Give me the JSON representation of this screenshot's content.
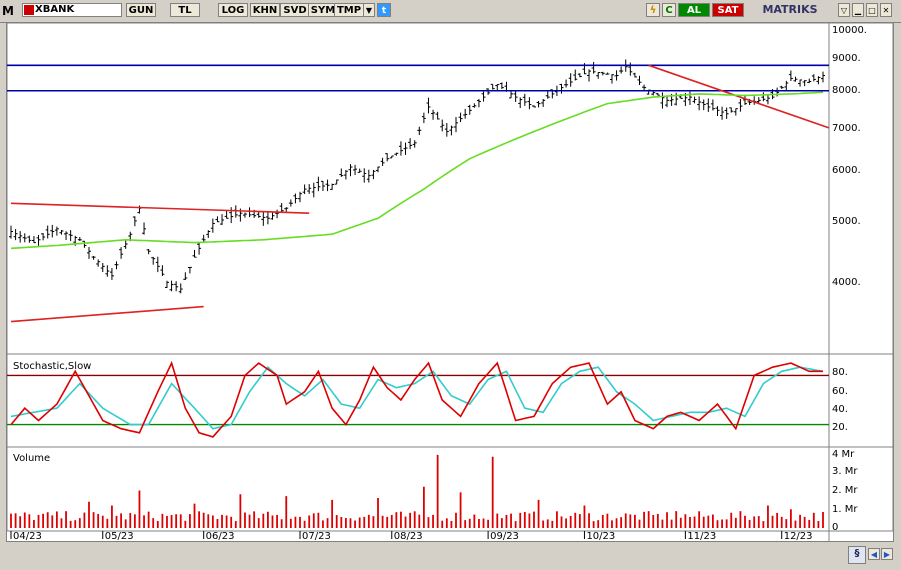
{
  "toolbar": {
    "app_icon": "M",
    "symbol": "XBANK",
    "buttons": [
      "GUN",
      "TL",
      "LOG",
      "KHN",
      "SVD",
      "SYM",
      "TMP"
    ],
    "al": "AL",
    "sat": "SAT",
    "brand": "MATRIKS"
  },
  "colors": {
    "price": "#000000",
    "ma": "#66dd22",
    "resistance": "#0000aa",
    "trend": "#dd2222",
    "stoch_k": "#dd0000",
    "stoch_d": "#33cccc",
    "stoch_upper": "#880000",
    "stoch_lower": "#008800",
    "volume": "#dd0000"
  },
  "price_panel": {
    "y_ticks": [
      "10000.",
      "9000.",
      "8000.",
      "7000.",
      "6000.",
      "5000.",
      "4000."
    ]
  },
  "stoch_panel": {
    "title": "Stochastic,Slow",
    "y_ticks": [
      "80.",
      "60.",
      "40.",
      "20."
    ]
  },
  "volume_panel": {
    "title": "Volume",
    "y_ticks": [
      "4 Mr",
      "3. Mr",
      "2. Mr",
      "1. Mr",
      "0"
    ]
  },
  "x_axis": {
    "labels": [
      "04/23",
      "05/23",
      "06/23",
      "07/23",
      "08/23",
      "09/23",
      "10/23",
      "11/23",
      "12/23"
    ]
  },
  "chart_data": {
    "type": "line",
    "scale": "log",
    "price_ylim": [
      3000,
      10500
    ],
    "horizontal_lines": [
      9050,
      8200
    ],
    "n_bars": 178,
    "month_start_index": [
      0,
      20,
      42,
      63,
      83,
      104,
      125,
      147,
      168
    ],
    "price_keyframes": [
      [
        0,
        4750
      ],
      [
        5,
        4550
      ],
      [
        10,
        4800
      ],
      [
        15,
        4600
      ],
      [
        18,
        4300
      ],
      [
        22,
        4000
      ],
      [
        26,
        4700
      ],
      [
        28,
        5200
      ],
      [
        30,
        4400
      ],
      [
        34,
        3900
      ],
      [
        37,
        3800
      ],
      [
        40,
        4300
      ],
      [
        44,
        4900
      ],
      [
        50,
        5100
      ],
      [
        56,
        5000
      ],
      [
        60,
        5200
      ],
      [
        64,
        5600
      ],
      [
        70,
        5700
      ],
      [
        74,
        6100
      ],
      [
        78,
        5900
      ],
      [
        82,
        6300
      ],
      [
        88,
        6700
      ],
      [
        91,
        7700
      ],
      [
        95,
        7000
      ],
      [
        100,
        7600
      ],
      [
        106,
        8400
      ],
      [
        110,
        8000
      ],
      [
        114,
        7700
      ],
      [
        120,
        8300
      ],
      [
        126,
        8850
      ],
      [
        132,
        8700
      ],
      [
        134,
        9000
      ],
      [
        138,
        8300
      ],
      [
        143,
        7900
      ],
      [
        148,
        8000
      ],
      [
        152,
        7700
      ],
      [
        156,
        7500
      ],
      [
        160,
        7800
      ],
      [
        166,
        8000
      ],
      [
        170,
        8600
      ],
      [
        174,
        8500
      ],
      [
        177,
        8700
      ]
    ],
    "ma_keyframes": [
      [
        0,
        4450
      ],
      [
        10,
        4500
      ],
      [
        25,
        4600
      ],
      [
        40,
        4550
      ],
      [
        55,
        4600
      ],
      [
        70,
        4700
      ],
      [
        80,
        5000
      ],
      [
        90,
        5600
      ],
      [
        100,
        6300
      ],
      [
        110,
        6800
      ],
      [
        120,
        7300
      ],
      [
        130,
        7800
      ],
      [
        140,
        8000
      ],
      [
        150,
        8100
      ],
      [
        160,
        8050
      ],
      [
        170,
        8100
      ],
      [
        177,
        8150
      ]
    ],
    "trend_lines": [
      {
        "from": [
          0,
          5300
        ],
        "to": [
          65,
          5100
        ]
      },
      {
        "from": [
          0,
          3350
        ],
        "to": [
          42,
          3550
        ]
      },
      {
        "from": [
          139,
          9050
        ],
        "to": [
          180,
          7100
        ]
      }
    ],
    "stochastic": {
      "upper": 80,
      "lower": 20,
      "ylim": [
        0,
        100
      ],
      "k_keyframes": [
        [
          0,
          20
        ],
        [
          3,
          40
        ],
        [
          6,
          25
        ],
        [
          10,
          45
        ],
        [
          14,
          85
        ],
        [
          17,
          55
        ],
        [
          20,
          25
        ],
        [
          24,
          15
        ],
        [
          28,
          10
        ],
        [
          32,
          60
        ],
        [
          35,
          95
        ],
        [
          38,
          40
        ],
        [
          41,
          10
        ],
        [
          44,
          5
        ],
        [
          48,
          30
        ],
        [
          51,
          80
        ],
        [
          54,
          95
        ],
        [
          58,
          80
        ],
        [
          60,
          45
        ],
        [
          64,
          60
        ],
        [
          67,
          85
        ],
        [
          70,
          40
        ],
        [
          73,
          20
        ],
        [
          76,
          50
        ],
        [
          79,
          90
        ],
        [
          82,
          65
        ],
        [
          85,
          50
        ],
        [
          88,
          75
        ],
        [
          91,
          95
        ],
        [
          94,
          50
        ],
        [
          98,
          30
        ],
        [
          102,
          70
        ],
        [
          106,
          95
        ],
        [
          110,
          25
        ],
        [
          114,
          30
        ],
        [
          118,
          70
        ],
        [
          122,
          90
        ],
        [
          126,
          95
        ],
        [
          130,
          45
        ],
        [
          133,
          60
        ],
        [
          136,
          25
        ],
        [
          140,
          15
        ],
        [
          143,
          30
        ],
        [
          146,
          35
        ],
        [
          150,
          25
        ],
        [
          154,
          45
        ],
        [
          158,
          15
        ],
        [
          162,
          80
        ],
        [
          166,
          90
        ],
        [
          170,
          95
        ],
        [
          174,
          85
        ],
        [
          177,
          85
        ]
      ],
      "d_keyframes": [
        [
          0,
          30
        ],
        [
          5,
          35
        ],
        [
          10,
          40
        ],
        [
          15,
          70
        ],
        [
          20,
          40
        ],
        [
          26,
          20
        ],
        [
          30,
          20
        ],
        [
          35,
          70
        ],
        [
          40,
          40
        ],
        [
          44,
          15
        ],
        [
          48,
          20
        ],
        [
          52,
          60
        ],
        [
          56,
          90
        ],
        [
          60,
          70
        ],
        [
          64,
          55
        ],
        [
          68,
          75
        ],
        [
          72,
          45
        ],
        [
          76,
          40
        ],
        [
          80,
          75
        ],
        [
          84,
          65
        ],
        [
          88,
          70
        ],
        [
          92,
          85
        ],
        [
          96,
          55
        ],
        [
          100,
          45
        ],
        [
          104,
          75
        ],
        [
          108,
          85
        ],
        [
          112,
          40
        ],
        [
          116,
          35
        ],
        [
          120,
          70
        ],
        [
          124,
          85
        ],
        [
          128,
          90
        ],
        [
          132,
          60
        ],
        [
          136,
          45
        ],
        [
          140,
          25
        ],
        [
          144,
          30
        ],
        [
          148,
          35
        ],
        [
          152,
          35
        ],
        [
          156,
          40
        ],
        [
          160,
          30
        ],
        [
          164,
          70
        ],
        [
          168,
          85
        ],
        [
          172,
          90
        ],
        [
          177,
          85
        ]
      ]
    },
    "volume": {
      "ylim": [
        0,
        4000
      ],
      "unit": "millions",
      "base_level": 600,
      "spikes": [
        [
          17,
          1400
        ],
        [
          22,
          1200
        ],
        [
          28,
          2000
        ],
        [
          40,
          1300
        ],
        [
          50,
          1800
        ],
        [
          60,
          1700
        ],
        [
          70,
          1500
        ],
        [
          80,
          1600
        ],
        [
          90,
          2200
        ],
        [
          93,
          3900
        ],
        [
          98,
          1900
        ],
        [
          105,
          3800
        ],
        [
          115,
          1500
        ],
        [
          125,
          1200
        ],
        [
          145,
          900
        ],
        [
          165,
          1200
        ],
        [
          170,
          1000
        ]
      ]
    }
  }
}
